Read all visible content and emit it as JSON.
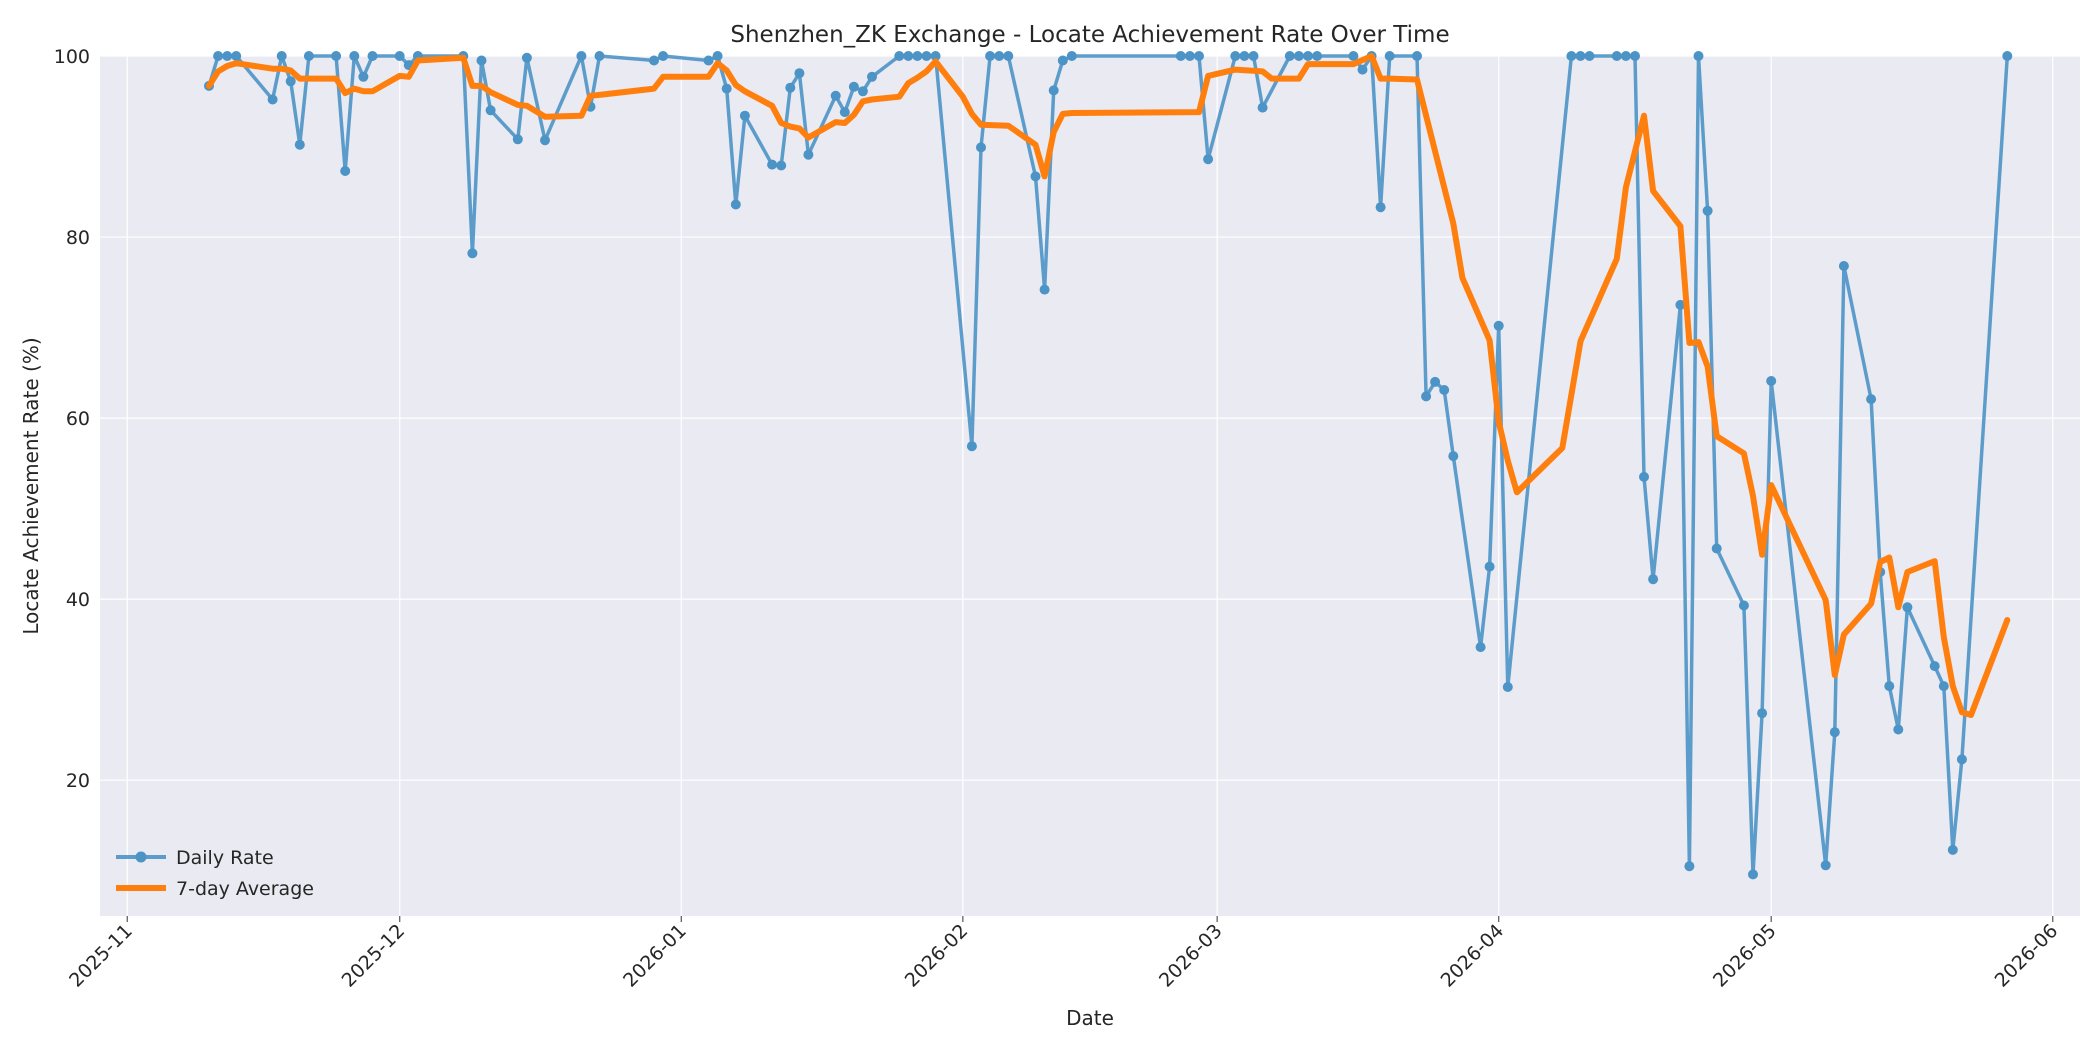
{
  "chart_data": {
    "type": "line",
    "title": "Shenzhen_ZK Exchange - Locate Achievement Rate Over Time",
    "xlabel": "Date",
    "ylabel": "Locate Achievement Rate (%)",
    "ylim": [
      5,
      100
    ],
    "xlim": [
      "2025-10-29",
      "2026-06-04"
    ],
    "x_ticks": [
      "2025-11",
      "2025-12",
      "2026-01",
      "2026-02",
      "2026-03",
      "2026-04",
      "2026-05",
      "2026-06"
    ],
    "y_ticks": [
      20,
      40,
      60,
      80,
      100
    ],
    "grid": true,
    "legend_position": "lower-left",
    "colors": {
      "daily": "#4c93c6",
      "avg": "#ff7f0e",
      "background": "#eaeaf2"
    },
    "series": [
      {
        "name": "Daily Rate",
        "style": "line-with-markers",
        "points": [
          [
            "2025-11-10",
            96.7
          ],
          [
            "2025-11-11",
            100
          ],
          [
            "2025-11-12",
            100
          ],
          [
            "2025-11-13",
            100
          ],
          [
            "2025-11-17",
            95.2
          ],
          [
            "2025-11-18",
            100
          ],
          [
            "2025-11-19",
            97.2
          ],
          [
            "2025-11-20",
            90.2
          ],
          [
            "2025-11-21",
            100
          ],
          [
            "2025-11-24",
            100
          ],
          [
            "2025-11-25",
            87.3
          ],
          [
            "2025-11-26",
            100
          ],
          [
            "2025-11-27",
            97.7
          ],
          [
            "2025-11-28",
            100
          ],
          [
            "2025-12-01",
            100
          ],
          [
            "2025-12-02",
            99
          ],
          [
            "2025-12-03",
            100
          ],
          [
            "2025-12-08",
            100
          ],
          [
            "2025-12-09",
            78.2
          ],
          [
            "2025-12-10",
            99.5
          ],
          [
            "2025-12-11",
            94
          ],
          [
            "2025-12-14",
            90.8
          ],
          [
            "2025-12-15",
            99.8
          ],
          [
            "2025-12-17",
            90.7
          ],
          [
            "2025-12-21",
            100
          ],
          [
            "2025-12-22",
            94.4
          ],
          [
            "2025-12-23",
            100
          ],
          [
            "2025-12-29",
            99.5
          ],
          [
            "2025-12-30",
            100
          ],
          [
            "2026-01-04",
            99.5
          ],
          [
            "2026-01-05",
            100
          ],
          [
            "2026-01-06",
            96.4
          ],
          [
            "2026-01-07",
            83.6
          ],
          [
            "2026-01-08",
            93.4
          ],
          [
            "2026-01-11",
            88
          ],
          [
            "2026-01-12",
            87.9
          ],
          [
            "2026-01-13",
            96.5
          ],
          [
            "2026-01-14",
            98.1
          ],
          [
            "2026-01-15",
            89.1
          ],
          [
            "2026-01-18",
            95.6
          ],
          [
            "2026-01-19",
            93.8
          ],
          [
            "2026-01-20",
            96.6
          ],
          [
            "2026-01-21",
            96.1
          ],
          [
            "2026-01-22",
            97.7
          ],
          [
            "2026-01-25",
            100
          ],
          [
            "2026-01-26",
            100
          ],
          [
            "2026-01-27",
            100
          ],
          [
            "2026-01-28",
            100
          ],
          [
            "2026-01-29",
            100
          ],
          [
            "2026-02-02",
            56.9
          ],
          [
            "2026-02-03",
            89.9
          ],
          [
            "2026-02-04",
            100
          ],
          [
            "2026-02-05",
            100
          ],
          [
            "2026-02-06",
            100
          ],
          [
            "2026-02-09",
            86.7
          ],
          [
            "2026-02-10",
            74.2
          ],
          [
            "2026-02-11",
            96.2
          ],
          [
            "2026-02-12",
            99.5
          ],
          [
            "2026-02-13",
            100
          ],
          [
            "2026-02-25",
            100
          ],
          [
            "2026-02-26",
            100
          ],
          [
            "2026-02-27",
            100
          ],
          [
            "2026-02-28",
            88.6
          ],
          [
            "2026-03-03",
            100
          ],
          [
            "2026-03-04",
            100
          ],
          [
            "2026-03-05",
            100
          ],
          [
            "2026-03-06",
            94.3
          ],
          [
            "2026-03-09",
            100
          ],
          [
            "2026-03-10",
            100
          ],
          [
            "2026-03-11",
            100
          ],
          [
            "2026-03-12",
            100
          ],
          [
            "2026-03-16",
            100
          ],
          [
            "2026-03-17",
            98.5
          ],
          [
            "2026-03-18",
            100
          ],
          [
            "2026-03-19",
            83.3
          ],
          [
            "2026-03-20",
            100
          ],
          [
            "2026-03-23",
            100
          ],
          [
            "2026-03-24",
            62.4
          ],
          [
            "2026-03-25",
            64
          ],
          [
            "2026-03-26",
            63.1
          ],
          [
            "2026-03-27",
            55.8
          ],
          [
            "2026-03-30",
            34.7
          ],
          [
            "2026-03-31",
            43.6
          ],
          [
            "2026-04-01",
            70.2
          ],
          [
            "2026-04-02",
            30.3
          ],
          [
            "2026-04-09",
            100
          ],
          [
            "2026-04-10",
            100
          ],
          [
            "2026-04-11",
            100
          ],
          [
            "2026-04-14",
            100
          ],
          [
            "2026-04-15",
            100
          ],
          [
            "2026-04-16",
            100
          ],
          [
            "2026-04-17",
            53.5
          ],
          [
            "2026-04-18",
            42.2
          ],
          [
            "2026-04-21",
            72.5
          ],
          [
            "2026-04-22",
            10.5
          ],
          [
            "2026-04-23",
            100
          ],
          [
            "2026-04-24",
            82.9
          ],
          [
            "2026-04-25",
            45.6
          ],
          [
            "2026-04-28",
            39.3
          ],
          [
            "2026-04-29",
            9.6
          ],
          [
            "2026-04-30",
            27.4
          ],
          [
            "2026-05-01",
            64.1
          ],
          [
            "2026-05-07",
            10.6
          ],
          [
            "2026-05-08",
            25.3
          ],
          [
            "2026-05-09",
            76.8
          ],
          [
            "2026-05-12",
            62.1
          ],
          [
            "2026-05-13",
            43
          ],
          [
            "2026-05-14",
            30.4
          ],
          [
            "2026-05-15",
            25.6
          ],
          [
            "2026-05-16",
            39.1
          ],
          [
            "2026-05-19",
            32.6
          ],
          [
            "2026-05-20",
            30.4
          ],
          [
            "2026-05-21",
            12.3
          ],
          [
            "2026-05-22",
            22.3
          ],
          [
            "2026-05-27",
            100
          ]
        ]
      },
      {
        "name": "7-day Average",
        "style": "thick-line",
        "points": [
          [
            "2025-11-10",
            96.7
          ],
          [
            "2025-11-11",
            98.3
          ],
          [
            "2025-11-12",
            98.9
          ],
          [
            "2025-11-13",
            99.2
          ],
          [
            "2025-11-17",
            98.6
          ],
          [
            "2025-11-18",
            98.6
          ],
          [
            "2025-11-19",
            98.4
          ],
          [
            "2025-11-20",
            97.5
          ],
          [
            "2025-11-21",
            97.5
          ],
          [
            "2025-11-24",
            97.5
          ],
          [
            "2025-11-25",
            95.9
          ],
          [
            "2025-11-26",
            96.4
          ],
          [
            "2025-11-27",
            96.1
          ],
          [
            "2025-11-28",
            96.1
          ],
          [
            "2025-12-01",
            97.8
          ],
          [
            "2025-12-02",
            97.7
          ],
          [
            "2025-12-03",
            99.5
          ],
          [
            "2025-12-08",
            99.8
          ],
          [
            "2025-12-09",
            96.7
          ],
          [
            "2025-12-10",
            96.7
          ],
          [
            "2025-12-11",
            96
          ],
          [
            "2025-12-14",
            94.6
          ],
          [
            "2025-12-15",
            94.5
          ],
          [
            "2025-12-17",
            93.3
          ],
          [
            "2025-12-21",
            93.4
          ],
          [
            "2025-12-22",
            95.6
          ],
          [
            "2025-12-23",
            95.7
          ],
          [
            "2025-12-29",
            96.4
          ],
          [
            "2025-12-30",
            97.7
          ],
          [
            "2026-01-04",
            97.7
          ],
          [
            "2026-01-05",
            99.2
          ],
          [
            "2026-01-06",
            98.4
          ],
          [
            "2026-01-07",
            96.8
          ],
          [
            "2026-01-08",
            96.1
          ],
          [
            "2026-01-11",
            94.5
          ],
          [
            "2026-01-12",
            92.6
          ],
          [
            "2026-01-13",
            92.2
          ],
          [
            "2026-01-14",
            92
          ],
          [
            "2026-01-15",
            91
          ],
          [
            "2026-01-18",
            92.7
          ],
          [
            "2026-01-19",
            92.6
          ],
          [
            "2026-01-20",
            93.5
          ],
          [
            "2026-01-21",
            95
          ],
          [
            "2026-01-22",
            95.2
          ],
          [
            "2026-01-25",
            95.5
          ],
          [
            "2026-01-26",
            97
          ],
          [
            "2026-01-27",
            97.6
          ],
          [
            "2026-01-28",
            98.3
          ],
          [
            "2026-01-29",
            99.4
          ],
          [
            "2026-02-01",
            95.5
          ],
          [
            "2026-02-02",
            93.6
          ],
          [
            "2026-02-03",
            92.4
          ],
          [
            "2026-02-06",
            92.3
          ],
          [
            "2026-02-09",
            90.2
          ],
          [
            "2026-02-10",
            86.7
          ],
          [
            "2026-02-11",
            91.6
          ],
          [
            "2026-02-12",
            93.6
          ],
          [
            "2026-02-13",
            93.7
          ],
          [
            "2026-02-27",
            93.8
          ],
          [
            "2026-02-28",
            97.8
          ],
          [
            "2026-03-03",
            98.5
          ],
          [
            "2026-03-06",
            98.3
          ],
          [
            "2026-03-07",
            97.5
          ],
          [
            "2026-03-10",
            97.5
          ],
          [
            "2026-03-11",
            99.1
          ],
          [
            "2026-03-16",
            99.1
          ],
          [
            "2026-03-18",
            100
          ],
          [
            "2026-03-19",
            97.5
          ],
          [
            "2026-03-20",
            97.5
          ],
          [
            "2026-03-23",
            97.4
          ],
          [
            "2026-03-27",
            81.5
          ],
          [
            "2026-03-28",
            75.5
          ],
          [
            "2026-03-31",
            68.6
          ],
          [
            "2026-04-01",
            59.6
          ],
          [
            "2026-04-02",
            55.3
          ],
          [
            "2026-04-03",
            51.8
          ],
          [
            "2026-04-08",
            56.7
          ],
          [
            "2026-04-10",
            68.5
          ],
          [
            "2026-04-14",
            77.6
          ],
          [
            "2026-04-15",
            85.5
          ],
          [
            "2026-04-17",
            93.4
          ],
          [
            "2026-04-18",
            85.1
          ],
          [
            "2026-04-21",
            81.2
          ],
          [
            "2026-04-22",
            68.3
          ],
          [
            "2026-04-23",
            68.4
          ],
          [
            "2026-04-24",
            65.7
          ],
          [
            "2026-04-25",
            58
          ],
          [
            "2026-04-28",
            56.1
          ],
          [
            "2026-04-29",
            51.4
          ],
          [
            "2026-04-30",
            44.9
          ],
          [
            "2026-05-01",
            52.6
          ],
          [
            "2026-05-07",
            39.9
          ],
          [
            "2026-05-08",
            31.6
          ],
          [
            "2026-05-09",
            36.1
          ],
          [
            "2026-05-12",
            39.5
          ],
          [
            "2026-05-13",
            44.1
          ],
          [
            "2026-05-14",
            44.6
          ],
          [
            "2026-05-15",
            39.1
          ],
          [
            "2026-05-16",
            43
          ],
          [
            "2026-05-19",
            44.2
          ],
          [
            "2026-05-20",
            35.8
          ],
          [
            "2026-05-21",
            30.4
          ],
          [
            "2026-05-22",
            27.5
          ],
          [
            "2026-05-23",
            27.2
          ],
          [
            "2026-05-27",
            37.7
          ]
        ]
      }
    ]
  }
}
